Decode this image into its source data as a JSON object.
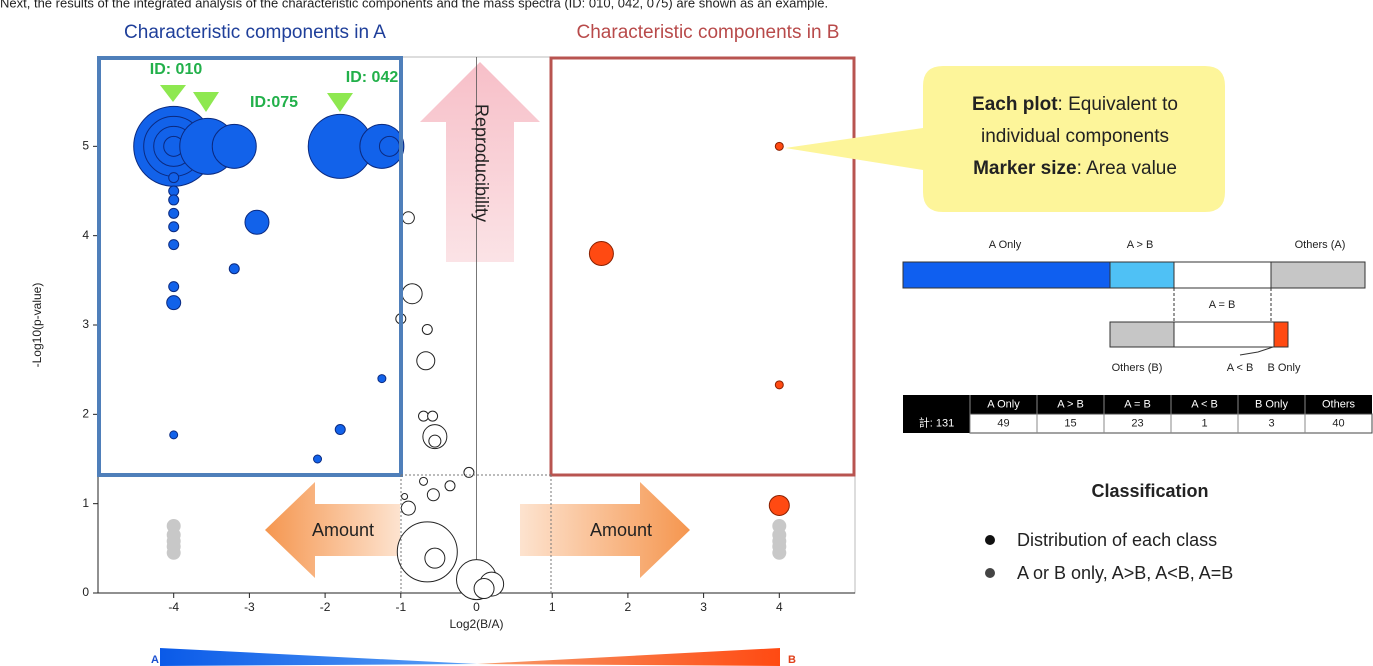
{
  "intro": "Next, the results of the integrated analysis of the characteristic components and the mass spectra (ID: 010, 042, 075) are shown as an example.",
  "chart_data": {
    "type": "scatter",
    "xlabel": "Log2(B/A)",
    "ylabel": "-Log10(p-value)",
    "xlim": [
      -5,
      5
    ],
    "ylim": [
      0,
      6
    ],
    "xticks": [
      -4,
      -3,
      -2,
      -1,
      0,
      1,
      2,
      3,
      4
    ],
    "yticks": [
      0,
      1,
      2,
      3,
      4,
      5
    ],
    "series": [
      {
        "color": "#1262ea",
        "stroke": "#0b2a80",
        "x": [
          -4,
          -4,
          -4,
          -4,
          -3.55,
          -3.2,
          -1.8,
          -1.25,
          -1.15,
          -2.9,
          -3.2,
          -4,
          -4,
          -4,
          -4,
          -4,
          -4,
          -4,
          -4,
          -1.25,
          -1.8,
          -2.1,
          -4
        ],
        "y": [
          5,
          5,
          5,
          5,
          5,
          5,
          5,
          5,
          5,
          4.15,
          3.63,
          4.65,
          4.5,
          4.4,
          4.25,
          4.1,
          3.9,
          3.43,
          3.25,
          2.4,
          1.83,
          1.5,
          1.77
        ],
        "sizes": [
          1600,
          900,
          400,
          100,
          784,
          484,
          1024,
          484,
          100,
          144,
          25,
          25,
          25,
          25,
          25,
          25,
          25,
          25,
          49,
          16,
          25,
          16,
          16
        ]
      },
      {
        "color": "#ffffff",
        "stroke": "#222222",
        "x": [
          -0.65,
          0,
          -0.55,
          0.2,
          -0.55,
          0.1,
          -0.85,
          -0.67,
          -0.9,
          -0.9,
          -1.0,
          -0.65,
          -0.7,
          -0.58,
          -0.55,
          -0.1,
          -0.35,
          -0.7,
          -0.95,
          -0.57
        ],
        "y": [
          0.46,
          0.15,
          1.75,
          0.1,
          0.39,
          0.05,
          3.35,
          2.6,
          0.95,
          4.2,
          3.07,
          2.95,
          1.98,
          1.98,
          1.7,
          1.35,
          1.2,
          1.25,
          1.08,
          1.1
        ],
        "sizes": [
          900,
          400,
          144,
          144,
          100,
          100,
          100,
          81,
          49,
          36,
          25,
          25,
          25,
          25,
          36,
          25,
          25,
          16,
          9,
          36
        ]
      },
      {
        "color": "#ff4a12",
        "stroke": "#8a2000",
        "x": [
          4,
          1.65,
          4,
          4
        ],
        "y": [
          5,
          3.8,
          2.33,
          0.98
        ],
        "sizes": [
          16,
          144,
          16,
          100
        ]
      },
      {
        "color": "#c8c8c8",
        "stroke": "none",
        "x": [
          -4,
          -4,
          -4,
          -4,
          -4,
          4,
          4,
          4,
          4,
          4
        ],
        "y": [
          0.75,
          0.65,
          0.58,
          0.52,
          0.45,
          0.75,
          0.65,
          0.58,
          0.52,
          0.45
        ],
        "sizes": [
          49,
          49,
          49,
          49,
          49,
          49,
          49,
          49,
          49,
          49
        ]
      }
    ]
  },
  "annotations": {
    "region_a": "Characteristic components in A",
    "region_b": "Characteristic components in B",
    "id_010": "ID: 010",
    "id_075": "ID:075",
    "id_042": "ID: 042",
    "reproducibility": "Reproducibility",
    "amount_left": "Amount",
    "amount_right": "Amount",
    "gradient_a": "A",
    "gradient_b": "B"
  },
  "callout": {
    "line1_bold": "Each plot",
    "line1_rest": ": Equivalent to",
    "line2": "individual components",
    "line3_bold": "Marker size",
    "line3_rest": ": Area value"
  },
  "diagram": {
    "a_only": "A Only",
    "a_gt_b": "A > B",
    "others_a": "Others (A)",
    "a_eq_b": "A = B",
    "others_b": "Others (B)",
    "a_lt_b": "A < B",
    "b_only": "B Only"
  },
  "table": {
    "header": [
      "A Only",
      "A > B",
      "A = B",
      "A < B",
      "B Only",
      "Others"
    ],
    "row_label": "計: 131",
    "row": [
      49,
      15,
      23,
      1,
      3,
      40
    ]
  },
  "classification": {
    "title": "Classification",
    "bullets": [
      "Distribution of each class",
      "A or B only, A>B, A<B, A=B"
    ]
  }
}
